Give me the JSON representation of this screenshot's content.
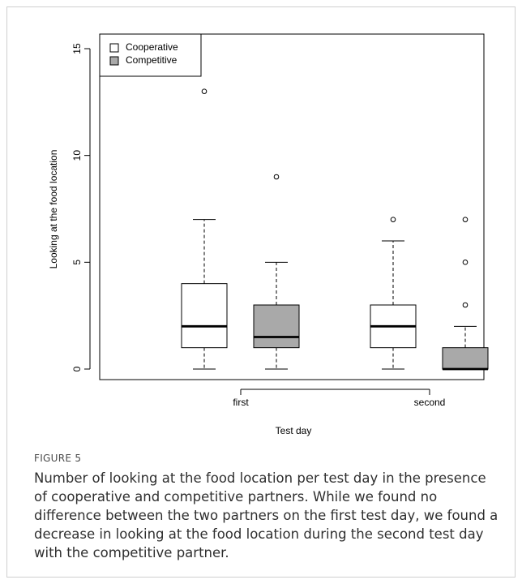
{
  "chart_data": {
    "type": "box",
    "xlabel": "Test day",
    "ylabel": "Looking at the food location",
    "categories": [
      "first",
      "second"
    ],
    "ylim": [
      0,
      15
    ],
    "yticks": [
      0,
      5,
      10,
      15
    ],
    "legend": {
      "placement": "top-left",
      "entries": [
        {
          "name": "Cooperative",
          "color": "#ffffff"
        },
        {
          "name": "Competitive",
          "color": "#a9a9a9"
        }
      ]
    },
    "series": [
      {
        "name": "Cooperative",
        "color": "#ffffff",
        "boxes": [
          {
            "category": "first",
            "min": 0,
            "q1": 1,
            "median": 2,
            "q3": 4,
            "max": 7,
            "outliers": [
              13
            ]
          },
          {
            "category": "second",
            "min": 0,
            "q1": 1,
            "median": 2,
            "q3": 3,
            "max": 6,
            "outliers": [
              7
            ]
          }
        ]
      },
      {
        "name": "Competitive",
        "color": "#a9a9a9",
        "boxes": [
          {
            "category": "first",
            "min": 0,
            "q1": 1,
            "median": 1.5,
            "q3": 3,
            "max": 5,
            "outliers": [
              9
            ]
          },
          {
            "category": "second",
            "min": 0,
            "q1": 0,
            "median": 0,
            "q3": 1,
            "max": 2,
            "outliers": [
              3,
              5,
              7
            ]
          }
        ]
      }
    ]
  },
  "caption": {
    "label": "FIGURE 5",
    "text": "Number of looking at the food location per test day in the presence of cooperative and competitive partners. While we found no difference between the two partners on the first test day, we found a decrease in looking at the food location during the second test day with the competitive partner."
  }
}
